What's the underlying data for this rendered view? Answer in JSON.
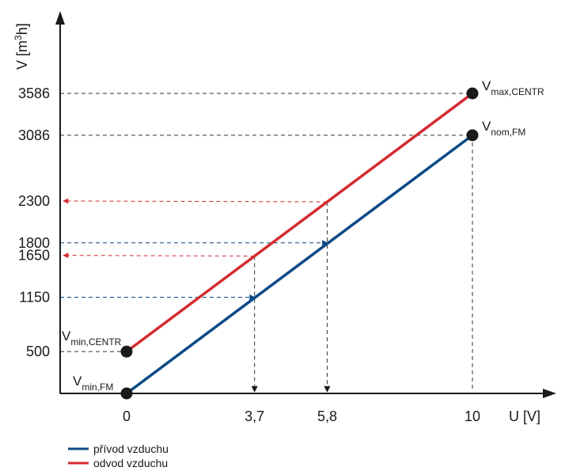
{
  "chart_data": {
    "type": "line",
    "xlabel": "U [V]",
    "ylabel_prefix": "V [m",
    "ylabel_sup": "3",
    "ylabel_suffix": "h]",
    "xlim": [
      0,
      10
    ],
    "ylim": [
      0,
      3586
    ],
    "x_ticks": [
      "0",
      "3,7",
      "5,8",
      "10"
    ],
    "y_ticks": [
      "500",
      "1150",
      "1650",
      "1800",
      "2300",
      "3086",
      "3586"
    ],
    "colors": {
      "supply": "#0b4a86",
      "exhaust": "#d42a2f",
      "guide": "#333333"
    },
    "series": [
      {
        "name": "přívod vzduchu",
        "color": "#0b4a86",
        "x": [
          0,
          10
        ],
        "y": [
          0,
          3086
        ]
      },
      {
        "name": "odvod vzduchu",
        "color": "#d42a2f",
        "x": [
          0,
          10
        ],
        "y": [
          500,
          3586
        ]
      }
    ],
    "points": [
      {
        "main": "V",
        "sub": "min,FM",
        "x": 0,
        "y": 0
      },
      {
        "main": "V",
        "sub": "min,CENTR",
        "x": 0,
        "y": 500
      },
      {
        "main": "V",
        "sub": "nom,FM",
        "x": 10,
        "y": 3086
      },
      {
        "main": "V",
        "sub": "max,CENTR",
        "x": 10,
        "y": 3586
      }
    ],
    "guides": [
      {
        "type": "y-to-line",
        "series": "supply",
        "y": 1150,
        "x_on_line": 3.7
      },
      {
        "type": "y-to-line",
        "series": "supply",
        "y": 1800,
        "x_on_line": 5.8
      },
      {
        "type": "line-to-y",
        "series": "exhaust",
        "x": 3.7,
        "y": 1650
      },
      {
        "type": "line-to-y",
        "series": "exhaust",
        "x": 5.8,
        "y": 2300
      },
      {
        "type": "line-to-x",
        "x": 3.7
      },
      {
        "type": "line-to-x",
        "x": 5.8
      },
      {
        "type": "line-to-x",
        "x": 10
      }
    ],
    "legend": {
      "placement": "bottom-left"
    }
  }
}
